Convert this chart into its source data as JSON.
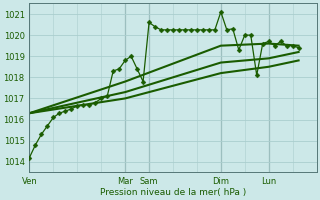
{
  "title": "",
  "xlabel": "Pression niveau de la mer( hPa )",
  "ylabel": "",
  "bg_color": "#cce8e8",
  "grid_color": "#aacece",
  "line_color": "#1a5c00",
  "ylim": [
    1013.5,
    1021.5
  ],
  "yticks": [
    1014,
    1015,
    1016,
    1017,
    1018,
    1019,
    1020,
    1021
  ],
  "day_labels": [
    "Ven",
    "Mar",
    "Sam",
    "Dim",
    "Lun"
  ],
  "day_positions": [
    0,
    48,
    60,
    96,
    120
  ],
  "total_hours": 144,
  "series_main": {
    "x": [
      0,
      3,
      6,
      9,
      12,
      15,
      18,
      21,
      24,
      27,
      30,
      33,
      36,
      39,
      42,
      45,
      48,
      51,
      54,
      57,
      60,
      63,
      66,
      69,
      72,
      75,
      78,
      81,
      84,
      87,
      90,
      93,
      96,
      99,
      102,
      105,
      108,
      111,
      114,
      117,
      120,
      123,
      126,
      129,
      132,
      135
    ],
    "y": [
      1014.2,
      1014.8,
      1015.3,
      1015.7,
      1016.1,
      1016.3,
      1016.4,
      1016.5,
      1016.65,
      1016.7,
      1016.7,
      1016.8,
      1017.0,
      1017.1,
      1018.3,
      1018.4,
      1018.8,
      1019.0,
      1018.4,
      1017.8,
      1020.6,
      1020.4,
      1020.25,
      1020.25,
      1020.25,
      1020.25,
      1020.25,
      1020.25,
      1020.25,
      1020.25,
      1020.25,
      1020.25,
      1021.1,
      1020.25,
      1020.3,
      1019.3,
      1020.0,
      1020.0,
      1018.1,
      1019.6,
      1019.7,
      1019.5,
      1019.7,
      1019.5,
      1019.5,
      1019.4
    ],
    "marker": "D",
    "markersize": 2.5,
    "linewidth": 0.9
  },
  "series_trend": [
    {
      "x": [
        0,
        48,
        96,
        120,
        135
      ],
      "y": [
        1016.3,
        1017.8,
        1019.5,
        1019.6,
        1019.5
      ]
    },
    {
      "x": [
        0,
        48,
        96,
        120,
        135
      ],
      "y": [
        1016.3,
        1017.3,
        1018.7,
        1018.9,
        1019.2
      ]
    },
    {
      "x": [
        0,
        48,
        96,
        120,
        135
      ],
      "y": [
        1016.3,
        1017.0,
        1018.2,
        1018.5,
        1018.8
      ]
    }
  ],
  "trend_linewidth": 1.5
}
